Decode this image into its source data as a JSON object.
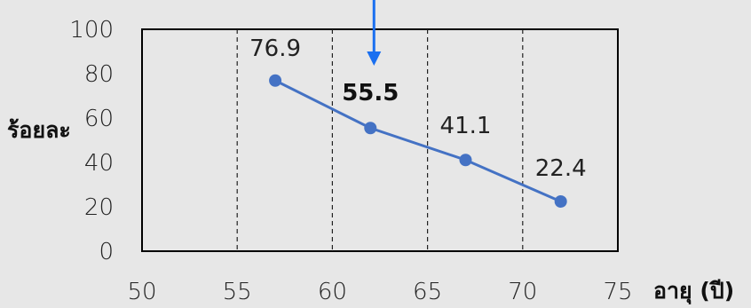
{
  "chart_data": {
    "type": "line",
    "title": "",
    "xlabel": "อายุ (ปี)",
    "ylabel": "ร้อยละ",
    "xlim": [
      50,
      75
    ],
    "ylim": [
      0,
      100
    ],
    "x_ticks": [
      50,
      55,
      60,
      65,
      70,
      75
    ],
    "y_ticks": [
      0,
      20,
      40,
      60,
      80,
      100
    ],
    "x_gridlines": [
      55,
      60,
      65,
      70
    ],
    "grid": "vertical dashed",
    "series": [
      {
        "color": "#4472c4",
        "points": [
          {
            "x": 57,
            "y": 76.9,
            "label": "76.9"
          },
          {
            "x": 62,
            "y": 55.5,
            "label": "55.5"
          },
          {
            "x": 67,
            "y": 41.1,
            "label": "41.1"
          },
          {
            "x": 72,
            "y": 22.4,
            "label": "22.4"
          }
        ]
      }
    ],
    "highlight": {
      "x": 62,
      "label": "55.5",
      "arrow_color": "#1a6ff0"
    }
  }
}
